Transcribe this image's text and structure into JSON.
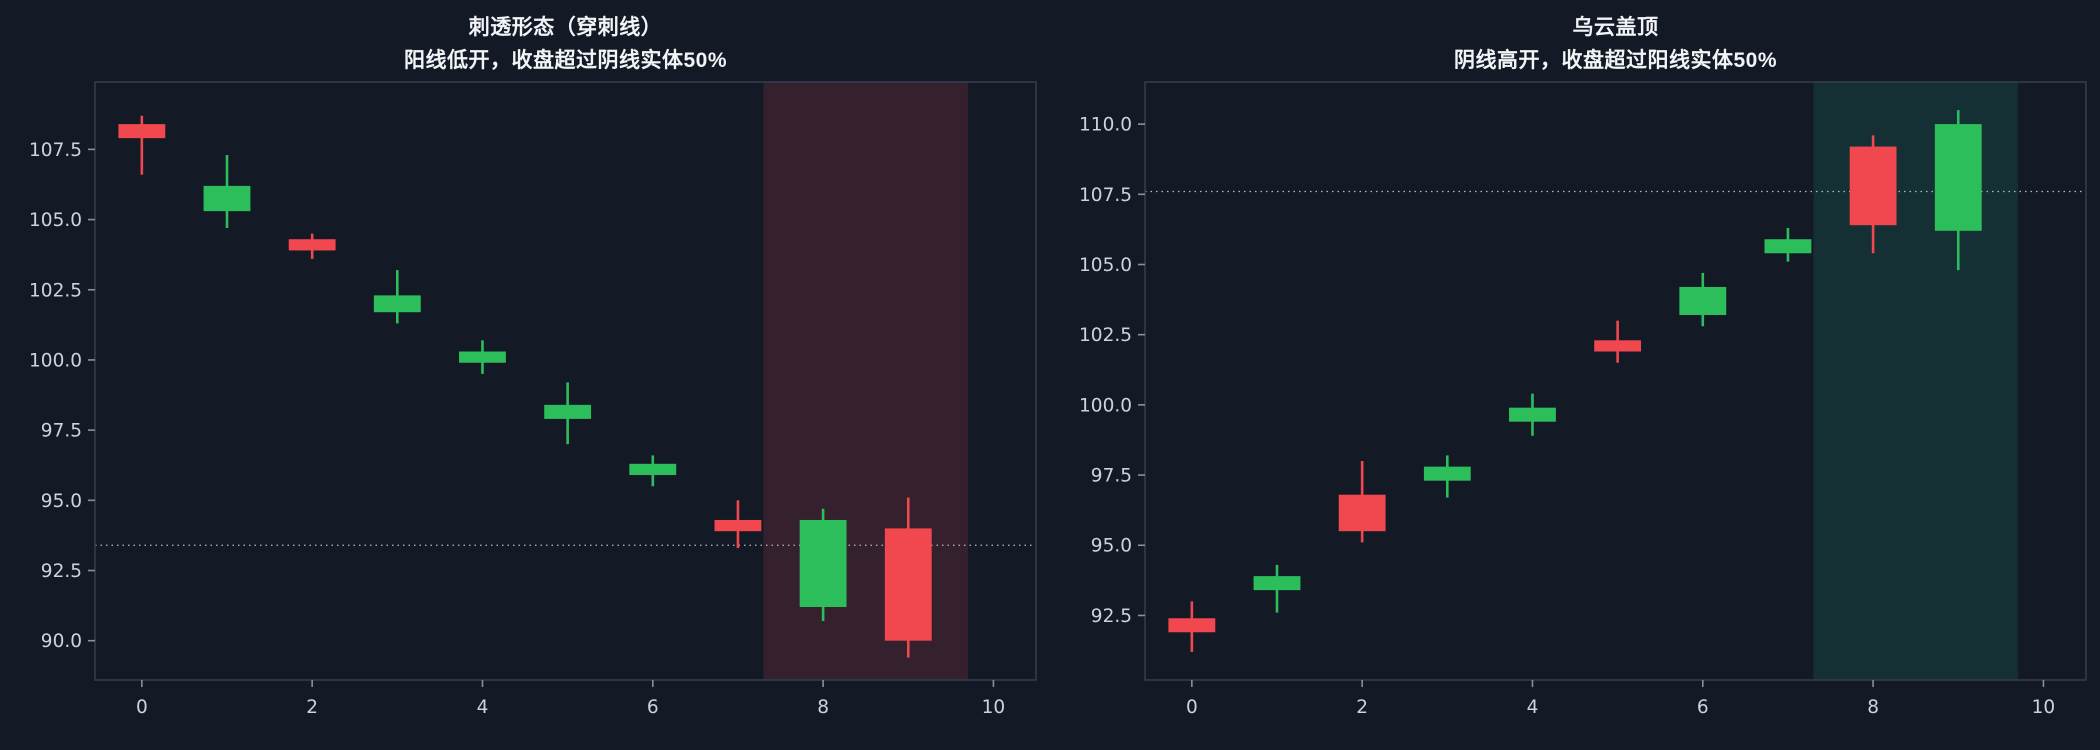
{
  "style": {
    "background": "#131a26",
    "spine": "#343c4b",
    "tick_mark": "#8b919c",
    "tick_label": "#ced3db",
    "title_color": "#f2f4f7",
    "refline": "#b4bac3",
    "bullish_red": "#f0484e",
    "bearish_green": "#2dbe5c"
  },
  "chart_data": [
    {
      "type": "candlestick",
      "title": "刺透形态（穿刺线）",
      "subtitle": "阳线低开，收盘超过阴线实体50%",
      "xlim": [
        -0.55,
        10.5
      ],
      "ylim": [
        88.6,
        109.9
      ],
      "xticks": [
        0,
        2,
        4,
        6,
        8,
        10
      ],
      "yticks": [
        90.0,
        92.5,
        95.0,
        97.5,
        100.0,
        102.5,
        105.0,
        107.5
      ],
      "x": [
        0,
        1,
        2,
        3,
        4,
        5,
        6,
        7,
        8,
        9
      ],
      "candles": [
        {
          "open": 107.9,
          "high": 108.7,
          "low": 106.6,
          "close": 108.4,
          "color": "red"
        },
        {
          "open": 106.2,
          "high": 107.3,
          "low": 104.7,
          "close": 105.3,
          "color": "green"
        },
        {
          "open": 103.9,
          "high": 104.5,
          "low": 103.6,
          "close": 104.3,
          "color": "red"
        },
        {
          "open": 102.3,
          "high": 103.2,
          "low": 101.3,
          "close": 101.7,
          "color": "green"
        },
        {
          "open": 100.3,
          "high": 100.7,
          "low": 99.5,
          "close": 99.9,
          "color": "green"
        },
        {
          "open": 98.4,
          "high": 99.2,
          "low": 97.0,
          "close": 97.9,
          "color": "green"
        },
        {
          "open": 96.3,
          "high": 96.6,
          "low": 95.5,
          "close": 95.9,
          "color": "green"
        },
        {
          "open": 93.9,
          "high": 95.0,
          "low": 93.3,
          "close": 94.3,
          "color": "red"
        },
        {
          "open": 94.3,
          "high": 94.7,
          "low": 90.7,
          "close": 91.2,
          "color": "green"
        },
        {
          "open": 90.0,
          "high": 95.1,
          "low": 89.4,
          "close": 94.0,
          "color": "red"
        }
      ],
      "highlight_span": {
        "from": 7.3,
        "to": 9.7,
        "color": "rgba(244,74,84,0.15)"
      },
      "refline": {
        "value": 93.4,
        "style": "dotted"
      }
    },
    {
      "type": "candlestick",
      "title": "乌云盖顶",
      "subtitle": "阴线高开，收盘超过阳线实体50%",
      "xlim": [
        -0.55,
        10.5
      ],
      "ylim": [
        90.2,
        111.5
      ],
      "xticks": [
        0,
        2,
        4,
        6,
        8,
        10
      ],
      "yticks": [
        92.5,
        95.0,
        97.5,
        100.0,
        102.5,
        105.0,
        107.5,
        110.0
      ],
      "x": [
        0,
        1,
        2,
        3,
        4,
        5,
        6,
        7,
        8,
        9
      ],
      "candles": [
        {
          "open": 91.9,
          "high": 93.0,
          "low": 91.2,
          "close": 92.4,
          "color": "red"
        },
        {
          "open": 93.9,
          "high": 94.3,
          "low": 92.6,
          "close": 93.4,
          "color": "green"
        },
        {
          "open": 95.5,
          "high": 98.0,
          "low": 95.1,
          "close": 96.8,
          "color": "red"
        },
        {
          "open": 97.8,
          "high": 98.2,
          "low": 96.7,
          "close": 97.3,
          "color": "green"
        },
        {
          "open": 99.9,
          "high": 100.4,
          "low": 98.9,
          "close": 99.4,
          "color": "green"
        },
        {
          "open": 101.9,
          "high": 103.0,
          "low": 101.5,
          "close": 102.3,
          "color": "red"
        },
        {
          "open": 104.2,
          "high": 104.7,
          "low": 102.8,
          "close": 103.2,
          "color": "green"
        },
        {
          "open": 105.9,
          "high": 106.3,
          "low": 105.1,
          "close": 105.4,
          "color": "green"
        },
        {
          "open": 106.4,
          "high": 109.6,
          "low": 105.4,
          "close": 109.2,
          "color": "red"
        },
        {
          "open": 110.0,
          "high": 110.5,
          "low": 104.8,
          "close": 106.2,
          "color": "green"
        }
      ],
      "highlight_span": {
        "from": 7.3,
        "to": 9.7,
        "color": "rgba(42,199,148,0.13)"
      },
      "refline": {
        "value": 107.6,
        "style": "dotted"
      }
    }
  ]
}
